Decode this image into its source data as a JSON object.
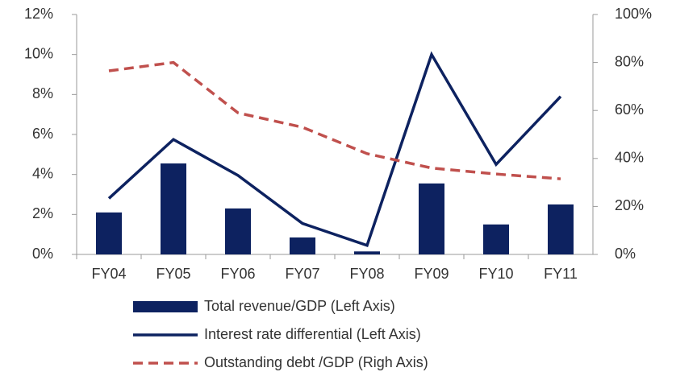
{
  "chart_data": {
    "type": "bar-line",
    "categories": [
      "FY04",
      "FY05",
      "FY06",
      "FY07",
      "FY08",
      "FY09",
      "FY10",
      "FY11"
    ],
    "series": [
      {
        "name": "Total revenue/GDP (Left Axis)",
        "type": "bar",
        "color": "#0d2260",
        "values": [
          2.1,
          4.55,
          2.3,
          0.85,
          0.15,
          3.55,
          1.5,
          2.5
        ]
      },
      {
        "name": "Interest rate differential (Left Axis)",
        "type": "line",
        "color": "#0d2260",
        "values": [
          2.8,
          5.75,
          3.95,
          1.55,
          0.45,
          10.0,
          4.5,
          7.9
        ]
      },
      {
        "name": "Outstanding debt /GDP (Righ Axis)",
        "type": "dashed-line",
        "axis": "y2",
        "color": "#c0504d",
        "values": [
          76.5,
          80,
          59,
          53,
          42,
          36,
          33.5,
          31.5
        ]
      }
    ],
    "ylim": [
      0,
      12
    ],
    "yticks": [
      {
        "value": 0,
        "label": "0%"
      },
      {
        "value": 2,
        "label": "2%"
      },
      {
        "value": 4,
        "label": "4%"
      },
      {
        "value": 6,
        "label": "6%"
      },
      {
        "value": 8,
        "label": "8%"
      },
      {
        "value": 10,
        "label": "10%"
      },
      {
        "value": 12,
        "label": "12%"
      }
    ],
    "y2lim": [
      0,
      100
    ],
    "y2ticks": [
      {
        "value": 0,
        "label": "0%"
      },
      {
        "value": 20,
        "label": "20%"
      },
      {
        "value": 40,
        "label": "40%"
      },
      {
        "value": 60,
        "label": "60%"
      },
      {
        "value": 80,
        "label": "80%"
      },
      {
        "value": 100,
        "label": "100%"
      }
    ],
    "legend": "bottom"
  }
}
